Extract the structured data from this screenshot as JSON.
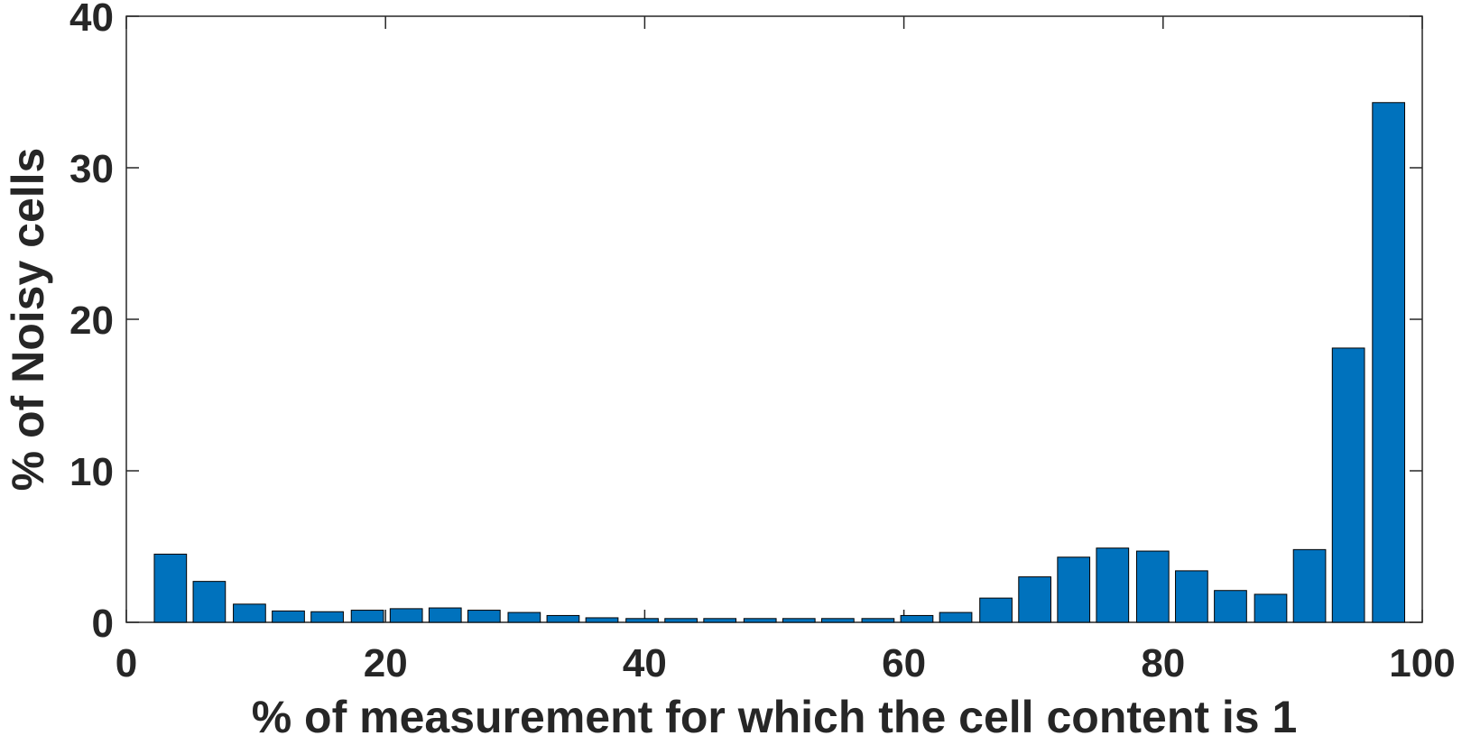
{
  "chart_data": {
    "type": "bar",
    "xlabel": "% of measurement for which the cell content is 1",
    "ylabel": "% of Noisy cells",
    "x": [
      3.4,
      6.4,
      9.5,
      12.5,
      15.5,
      18.6,
      21.6,
      24.6,
      27.6,
      30.7,
      33.7,
      36.7,
      39.8,
      42.8,
      45.8,
      48.9,
      51.9,
      54.9,
      58.0,
      61.0,
      64.0,
      67.1,
      70.1,
      73.1,
      76.1,
      79.2,
      82.2,
      85.2,
      88.3,
      91.3,
      94.3,
      97.4
    ],
    "values": [
      4.5,
      2.7,
      1.2,
      0.75,
      0.7,
      0.8,
      0.9,
      0.95,
      0.8,
      0.65,
      0.45,
      0.3,
      0.25,
      0.25,
      0.25,
      0.25,
      0.25,
      0.25,
      0.25,
      0.45,
      0.65,
      1.6,
      3.0,
      4.3,
      4.9,
      4.7,
      3.4,
      2.1,
      1.85,
      4.8,
      18.1,
      34.3
    ],
    "color": "#0072bd",
    "xlim": [
      0,
      100
    ],
    "xticks": [
      0,
      20,
      40,
      60,
      80,
      100
    ],
    "ylim": [
      0,
      40
    ],
    "yticks": [
      0,
      10,
      20,
      30,
      40
    ],
    "grid": false
  }
}
